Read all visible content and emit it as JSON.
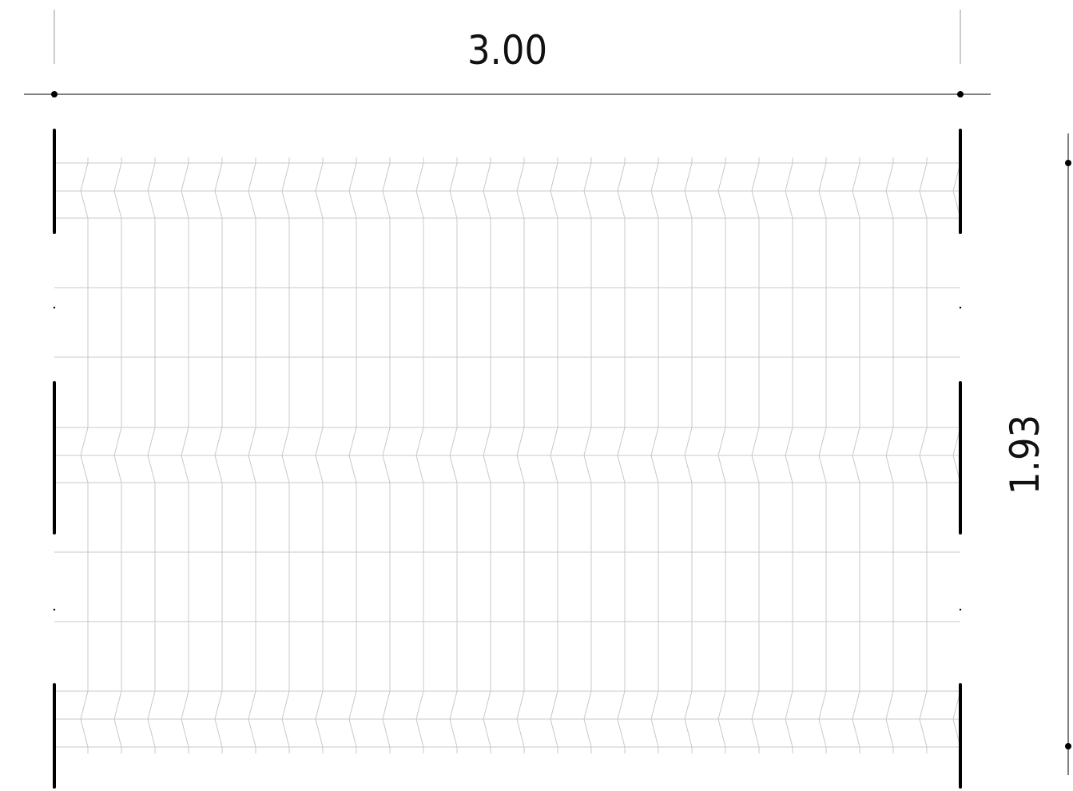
{
  "drawing": {
    "width_dimension": {
      "label": "3.00",
      "value_m": 3.0
    },
    "height_dimension": {
      "label": "1.93",
      "value_m": 1.93
    },
    "panel": {
      "wire_rows": 3
    },
    "colors": {
      "ink": "#000000",
      "mesh": "#c8c8c8",
      "post": "#000000",
      "dim_text": "#111111"
    }
  }
}
